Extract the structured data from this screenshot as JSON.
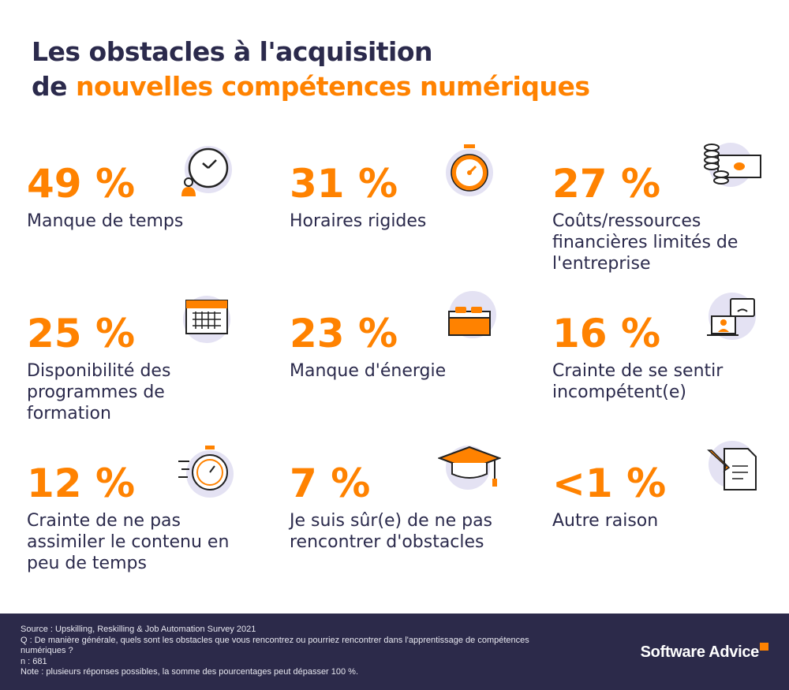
{
  "title": {
    "line1": "Les obstacles à l'acquisition",
    "line2_prefix": "de ",
    "line2_highlight": "nouvelles compétences numériques"
  },
  "colors": {
    "accent": "#ff8200",
    "navy": "#2b2a4c",
    "icon_bg": "#e4e2f3",
    "footer_bg": "#2c2a4a"
  },
  "items": [
    {
      "pct": "49 %",
      "label": "Manque de temps",
      "icon": "clock-person-icon"
    },
    {
      "pct": "31 %",
      "label": "Horaires rigides",
      "icon": "stopwatch-icon"
    },
    {
      "pct": "27 %",
      "label": "Coûts/ressources financières limités de l'entreprise",
      "icon": "money-coins-icon"
    },
    {
      "pct": "25 %",
      "label": "Disponibilité des programmes de formation",
      "icon": "calendar-icon"
    },
    {
      "pct": "23 %",
      "label": "Manque d'énergie",
      "icon": "bed-icon"
    },
    {
      "pct": "16 %",
      "label": "Crainte de se sentir incompétent(e)",
      "icon": "video-call-sad-icon"
    },
    {
      "pct": "12 %",
      "label": "Crainte de ne pas assimiler le contenu en peu de temps",
      "icon": "fast-timer-icon"
    },
    {
      "pct": "7 %",
      "label": "Je suis sûr(e) de ne pas rencontrer d'obstacles",
      "icon": "graduation-cap-icon"
    },
    {
      "pct": "<1 %",
      "label": "Autre raison",
      "icon": "document-pencil-icon"
    }
  ],
  "footer": {
    "source": "Source : Upskilling, Reskilling & Job Automation Survey 2021",
    "question": "Q : De manière générale, quels sont les obstacles que vous rencontrez ou pourriez rencontrer dans l'apprentissage de compétences numériques ?",
    "n": "n : 681",
    "note": "Note : plusieurs réponses possibles, la somme des pourcentages peut dépasser 100 %.",
    "logo": "Software Advice"
  }
}
